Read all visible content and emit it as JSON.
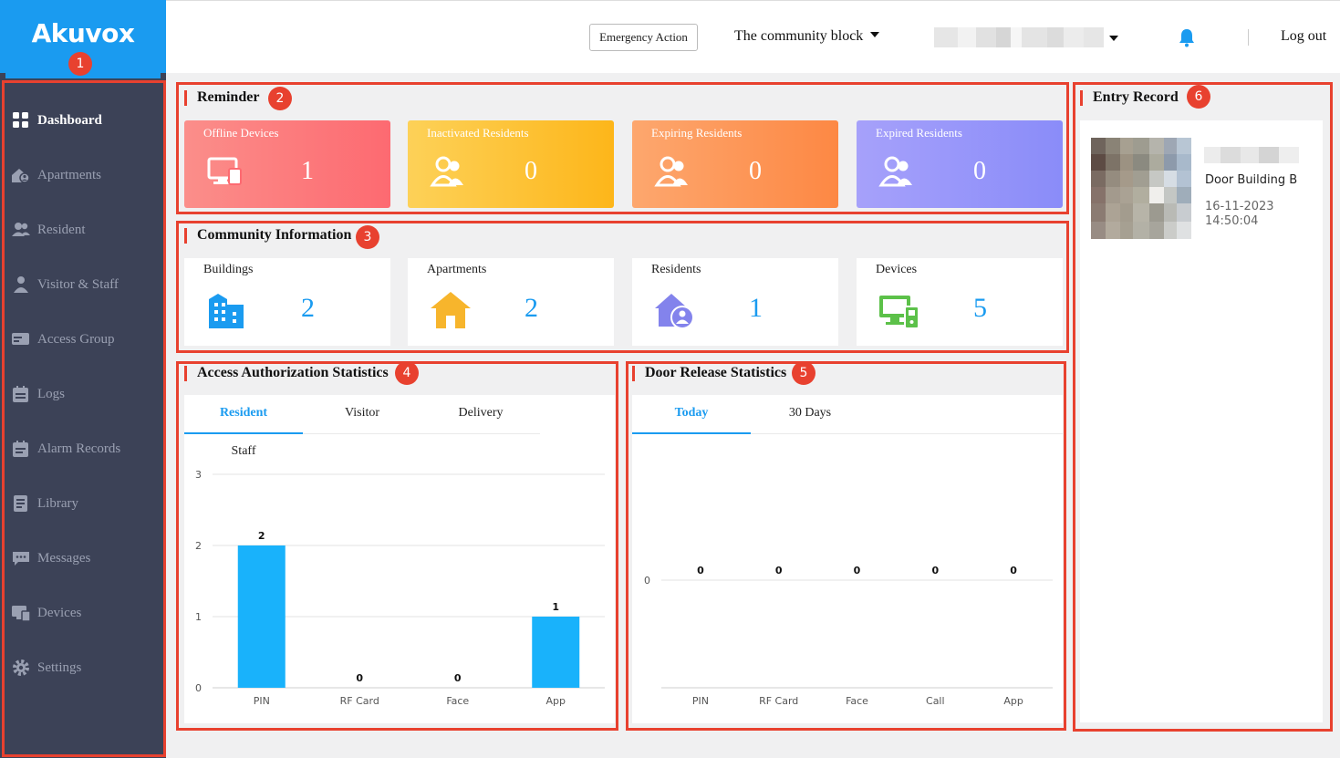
{
  "brand": {
    "logo_text": "Akuvox",
    "color": "#1a9bf0"
  },
  "sidebar": {
    "items": [
      {
        "label": "Dashboard",
        "icon": "dashboard-icon",
        "active": true
      },
      {
        "label": "Apartments",
        "icon": "apartment-icon"
      },
      {
        "label": "Resident",
        "icon": "resident-icon"
      },
      {
        "label": "Visitor & Staff",
        "icon": "visitor-icon"
      },
      {
        "label": "Access Group",
        "icon": "access-card-icon"
      },
      {
        "label": "Logs",
        "icon": "logs-icon"
      },
      {
        "label": "Alarm Records",
        "icon": "alarm-records-icon"
      },
      {
        "label": "Library",
        "icon": "library-icon"
      },
      {
        "label": "Messages",
        "icon": "messages-icon"
      },
      {
        "label": "Devices",
        "icon": "devices-icon"
      },
      {
        "label": "Settings",
        "icon": "gear-icon"
      }
    ]
  },
  "header": {
    "emergency_label": "Emergency Action",
    "community": "The community block",
    "logout": "Log out"
  },
  "badges": {
    "b1": "1",
    "b2": "2",
    "b3": "3",
    "b4": "4",
    "b5": "5",
    "b6": "6"
  },
  "reminder": {
    "title": "Reminder",
    "cards": [
      {
        "label": "Offline Devices",
        "value": "1",
        "icon": "offline-device-icon"
      },
      {
        "label": "Inactivated Residents",
        "value": "0",
        "icon": "residents-icon"
      },
      {
        "label": "Expiring Residents",
        "value": "0",
        "icon": "residents-icon"
      },
      {
        "label": "Expired Residents",
        "value": "0",
        "icon": "residents-icon"
      }
    ]
  },
  "community_info": {
    "title": "Community Information",
    "cards": [
      {
        "label": "Buildings",
        "value": "2",
        "icon": "building-icon"
      },
      {
        "label": "Apartments",
        "value": "2",
        "icon": "house-icon"
      },
      {
        "label": "Residents",
        "value": "1",
        "icon": "resident-house-icon"
      },
      {
        "label": "Devices",
        "value": "5",
        "icon": "device-monitor-icon"
      }
    ]
  },
  "access_auth": {
    "title": "Access Authorization Statistics",
    "tabs": [
      "Resident",
      "Visitor",
      "Delivery",
      "Staff"
    ],
    "active_tab": "Resident"
  },
  "door_release": {
    "title": "Door Release Statistics",
    "tabs": [
      "Today",
      "30 Days"
    ],
    "active_tab": "Today"
  },
  "entry_record": {
    "title": "Entry Record",
    "door": "Door Building B",
    "date": "16-11-2023",
    "time": "14:50:04"
  },
  "chart_data": [
    {
      "type": "bar",
      "categories": [
        "PIN",
        "RF Card",
        "Face",
        "App"
      ],
      "values": [
        2,
        0,
        0,
        1
      ],
      "ylim": [
        0,
        3
      ],
      "yticks": [
        0,
        1,
        2,
        3
      ],
      "color": "#19b2fb",
      "grid": true
    },
    {
      "type": "bar",
      "categories": [
        "PIN",
        "RF Card",
        "Face",
        "Call",
        "App"
      ],
      "values": [
        0,
        0,
        0,
        0,
        0
      ],
      "yticks": [
        0
      ],
      "color": "#19b2fb",
      "grid": true
    }
  ]
}
